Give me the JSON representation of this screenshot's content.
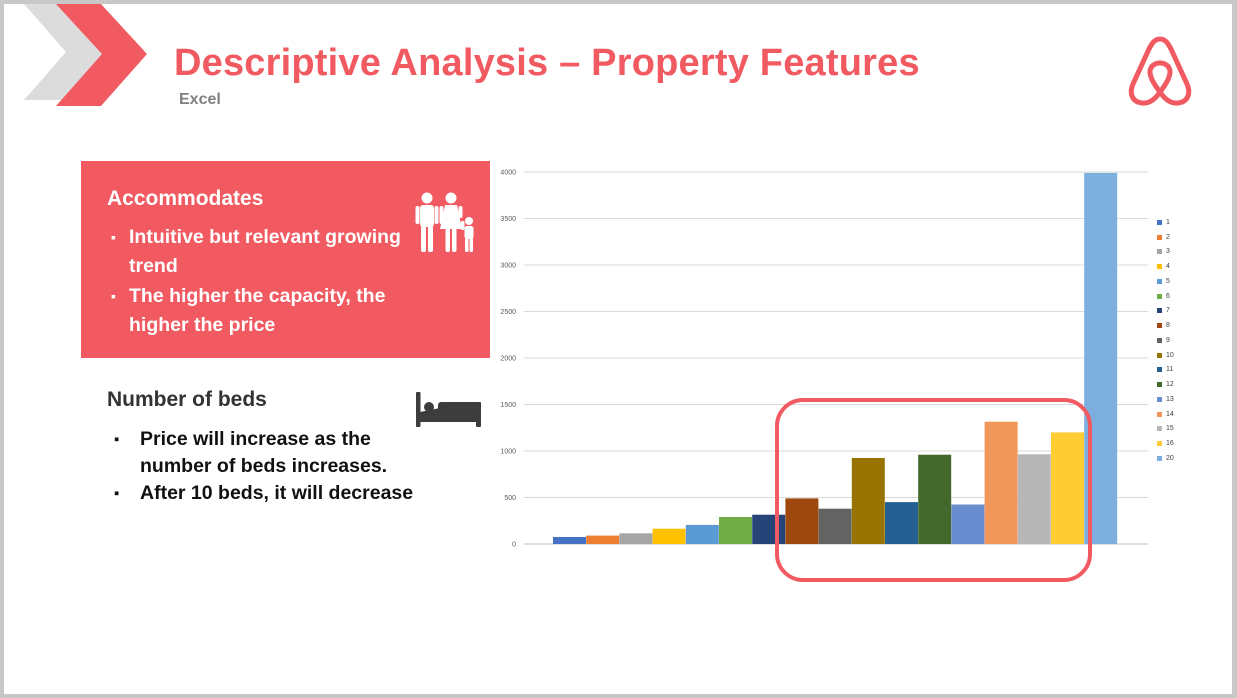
{
  "slide": {
    "title": "Descriptive Analysis – Property Features",
    "subtitle": "Excel",
    "logo_icon": "airbnb-logo-icon",
    "decoration_icon": "chevron-arrows-icon"
  },
  "accommodates": {
    "title": "Accommodates",
    "icon": "family-icon",
    "bullets": [
      "Intuitive but relevant growing trend",
      "The higher the capacity, the higher the price"
    ]
  },
  "beds": {
    "title": "Number of beds",
    "icon": "bed-icon",
    "bullets": [
      "Price will increase as the number of beds increases.",
      "After 10 beds, it will decrease"
    ]
  },
  "colors": {
    "accent": "#f25a61",
    "subtitle": "#808080"
  },
  "chart_data": {
    "type": "bar",
    "ylim": [
      0,
      4000
    ],
    "yticks": [
      "4000",
      "3500",
      "3000",
      "2500",
      "2000",
      "1500",
      "1000",
      "500",
      "0"
    ],
    "grid": true,
    "legend_position": "right",
    "series": [
      {
        "name": "1",
        "value": 75,
        "color": "#4472c4"
      },
      {
        "name": "2",
        "value": 90,
        "color": "#ed7d31"
      },
      {
        "name": "3",
        "value": 115,
        "color": "#a5a5a5"
      },
      {
        "name": "4",
        "value": 165,
        "color": "#ffc000"
      },
      {
        "name": "5",
        "value": 205,
        "color": "#5b9bd5"
      },
      {
        "name": "6",
        "value": 290,
        "color": "#70ad47"
      },
      {
        "name": "7",
        "value": 315,
        "color": "#264478"
      },
      {
        "name": "8",
        "value": 490,
        "color": "#9e480e"
      },
      {
        "name": "9",
        "value": 380,
        "color": "#636363"
      },
      {
        "name": "10",
        "value": 925,
        "color": "#997300"
      },
      {
        "name": "11",
        "value": 450,
        "color": "#255e91"
      },
      {
        "name": "12",
        "value": 960,
        "color": "#43682b"
      },
      {
        "name": "13",
        "value": 425,
        "color": "#698ed0"
      },
      {
        "name": "14",
        "value": 1315,
        "color": "#f1975a"
      },
      {
        "name": "15",
        "value": 965,
        "color": "#b7b7b7"
      },
      {
        "name": "16",
        "value": 1200,
        "color": "#ffcd33"
      },
      {
        "name": "20",
        "value": 3990,
        "color": "#7cafdd"
      }
    ]
  }
}
